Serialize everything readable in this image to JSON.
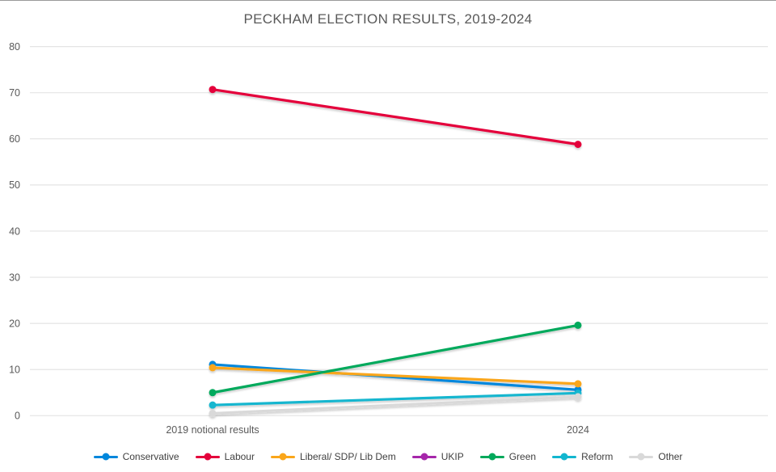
{
  "chart_data": {
    "type": "line",
    "title": "PECKHAM ELECTION RESULTS, 2019-2024",
    "xlabel": "",
    "ylabel": "",
    "categories": [
      "2019 notional results",
      "2024"
    ],
    "series": [
      {
        "name": "Conservative",
        "color": "#0087DC",
        "values": [
          11.1,
          5.6
        ]
      },
      {
        "name": "Labour",
        "color": "#E4003B",
        "values": [
          70.7,
          58.8
        ]
      },
      {
        "name": "Liberal/ SDP/ Lib Dem",
        "color": "#FAA61A",
        "values": [
          10.4,
          6.9
        ]
      },
      {
        "name": "UKIP",
        "color": "#A626AA",
        "values": [
          null,
          null
        ]
      },
      {
        "name": "Green",
        "color": "#02A95B",
        "values": [
          5.0,
          19.6
        ]
      },
      {
        "name": "Reform",
        "color": "#12B6CF",
        "values": [
          2.3,
          4.9
        ]
      },
      {
        "name": "Other",
        "color": "#D9D9D9",
        "values": [
          0.5,
          4.1
        ]
      }
    ],
    "ylim": [
      0,
      80
    ],
    "yticks": [
      0,
      10,
      20,
      30,
      40,
      50,
      60,
      70,
      80
    ],
    "grid": "horizontal",
    "grid_color": "#E4E4E4",
    "axis_text_color": "#595959",
    "title_color": "#595959",
    "background": "#FFFFFF",
    "legend_position": "bottom",
    "marker": "circle"
  }
}
